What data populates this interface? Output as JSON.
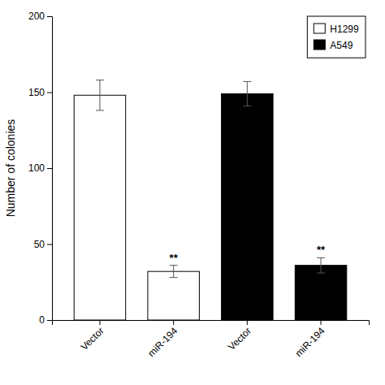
{
  "chart_data": {
    "type": "bar",
    "ylabel": "Number of colonies",
    "categories": [
      "Vector",
      "miR-194",
      "Vector",
      "miR-194"
    ],
    "series": [
      {
        "name": "H1299",
        "color": "white",
        "values": [
          148,
          32,
          null,
          null
        ],
        "errors": [
          10,
          4,
          null,
          null
        ],
        "annotations": [
          null,
          "**",
          null,
          null
        ]
      },
      {
        "name": "A549",
        "color": "black",
        "values": [
          null,
          null,
          149,
          36
        ],
        "errors": [
          null,
          null,
          8,
          5
        ],
        "annotations": [
          null,
          null,
          null,
          "**"
        ]
      }
    ],
    "ylim": [
      0,
      200
    ],
    "yticks": [
      0,
      50,
      100,
      150,
      200
    ],
    "grid": false,
    "legend": "upper right"
  }
}
